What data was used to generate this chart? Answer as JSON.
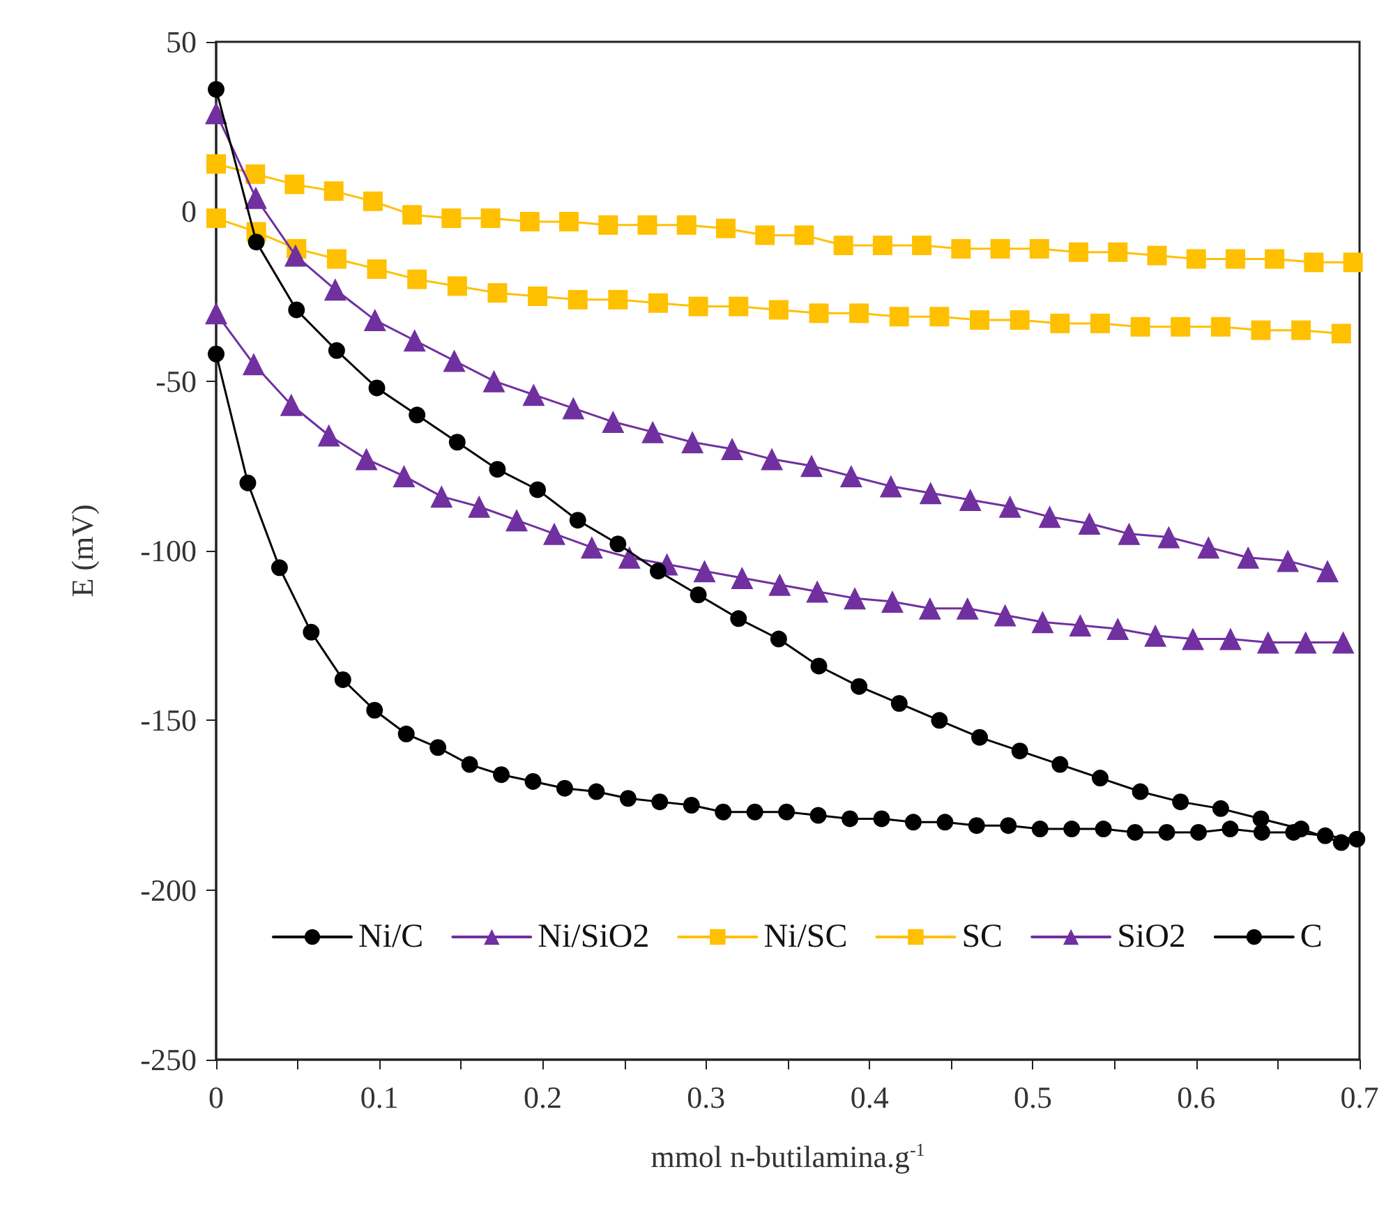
{
  "chart_data": {
    "type": "line",
    "xlabel": "mmol n-butilamina.g$^{-1}$",
    "ylabel": "E (mV)",
    "xlim": [
      0,
      0.7
    ],
    "xticks": [
      0,
      {
        "value": 0.05,
        "label": null
      },
      0.1,
      {
        "value": 0.15,
        "label": null
      },
      0.2,
      {
        "value": 0.25,
        "label": null
      },
      0.3,
      {
        "value": 0.35,
        "label": null
      },
      0.4,
      {
        "value": 0.45,
        "label": null
      },
      0.5,
      {
        "value": 0.55,
        "label": null
      },
      0.6,
      {
        "value": 0.65,
        "label": null
      },
      0.7
    ],
    "ylim": [
      -250,
      50
    ],
    "yticks": [
      -250,
      -200,
      -150,
      -100,
      -50,
      0,
      50
    ],
    "grid": false,
    "legend": "bottom",
    "line_style": "solid",
    "series": [
      {
        "name": "Ni/C",
        "color": "#000000",
        "marker": "circle",
        "x": [
          0,
          0.0246,
          0.0492,
          0.0738,
          0.0984,
          0.123,
          0.1476,
          0.1722,
          0.1968,
          0.2214,
          0.246,
          0.2706,
          0.2952,
          0.3198,
          0.3444,
          0.369,
          0.3936,
          0.4182,
          0.4428,
          0.4674,
          0.492,
          0.5166,
          0.5412,
          0.5658,
          0.5904,
          0.615,
          0.6396,
          0.6642,
          0.6888
        ],
        "values": [
          36,
          -9,
          -29,
          -41,
          -52,
          -60,
          -68,
          -76,
          -82,
          -91,
          -98,
          -106,
          -113,
          -120,
          -126,
          -134,
          -140,
          -145,
          -150,
          -155,
          -159,
          -163,
          -167,
          -171,
          -174,
          -176,
          -179,
          -182,
          -186
        ]
      },
      {
        "name": "Ni/SiO2",
        "color": "#7030a0",
        "marker": "triangle",
        "x": [
          0,
          0.0243,
          0.0486,
          0.0729,
          0.0972,
          0.1215,
          0.1458,
          0.1701,
          0.1944,
          0.2187,
          0.243,
          0.2673,
          0.2916,
          0.3159,
          0.3402,
          0.3645,
          0.3888,
          0.4131,
          0.4374,
          0.4617,
          0.486,
          0.5103,
          0.5346,
          0.5589,
          0.5832,
          0.6075,
          0.6318,
          0.6561,
          0.6804
        ],
        "values": [
          29,
          4,
          -13,
          -23,
          -32,
          -38,
          -44,
          -50,
          -54,
          -58,
          -62,
          -65,
          -68,
          -70,
          -73,
          -75,
          -78,
          -81,
          -83,
          -85,
          -87,
          -90,
          -92,
          -95,
          -96,
          -99,
          -102,
          -103,
          -106
        ]
      },
      {
        "name": "Ni/SC",
        "color": "#ffc000",
        "marker": "square",
        "x": [
          0,
          0.0246,
          0.0492,
          0.0738,
          0.0984,
          0.123,
          0.1476,
          0.1722,
          0.1968,
          0.2214,
          0.246,
          0.2706,
          0.2952,
          0.3198,
          0.3444,
          0.369,
          0.3936,
          0.4182,
          0.4428,
          0.4674,
          0.492,
          0.5166,
          0.5412,
          0.5658,
          0.5904,
          0.615,
          0.6396,
          0.6642,
          0.6888
        ],
        "values": [
          -2,
          -6,
          -11,
          -14,
          -17,
          -20,
          -22,
          -24,
          -25,
          -26,
          -26,
          -27,
          -28,
          -28,
          -29,
          -30,
          -30,
          -31,
          -31,
          -32,
          -32,
          -33,
          -33,
          -34,
          -34,
          -34,
          -35,
          -35,
          -36
        ]
      },
      {
        "name": "SC",
        "color": "#ffc000",
        "marker": "square",
        "x": [
          0,
          0.024,
          0.048,
          0.072,
          0.096,
          0.12,
          0.144,
          0.168,
          0.192,
          0.216,
          0.24,
          0.264,
          0.288,
          0.312,
          0.336,
          0.36,
          0.384,
          0.408,
          0.432,
          0.456,
          0.48,
          0.504,
          0.528,
          0.552,
          0.576,
          0.6,
          0.624,
          0.648,
          0.672,
          0.696
        ],
        "values": [
          14,
          11,
          8,
          6,
          3,
          -1,
          -2,
          -2,
          -3,
          -3,
          -4,
          -4,
          -4,
          -5,
          -7,
          -7,
          -10,
          -10,
          -10,
          -11,
          -11,
          -11,
          -12,
          -12,
          -13,
          -14,
          -14,
          -14,
          -15,
          -15
        ]
      },
      {
        "name": "SiO2",
        "color": "#7030a0",
        "marker": "triangle",
        "x": [
          0,
          0.023,
          0.046,
          0.069,
          0.092,
          0.115,
          0.138,
          0.161,
          0.184,
          0.207,
          0.23,
          0.253,
          0.276,
          0.299,
          0.322,
          0.345,
          0.368,
          0.391,
          0.414,
          0.437,
          0.46,
          0.483,
          0.506,
          0.529,
          0.552,
          0.575,
          0.598,
          0.621,
          0.644,
          0.667,
          0.69
        ],
        "values": [
          -30,
          -45,
          -57,
          -66,
          -73,
          -78,
          -84,
          -87,
          -91,
          -95,
          -99,
          -102,
          -104,
          -106,
          -108,
          -110,
          -112,
          -114,
          -115,
          -117,
          -117,
          -119,
          -121,
          -122,
          -123,
          -125,
          -126,
          -126,
          -127,
          -127,
          -127
        ]
      },
      {
        "name": "C",
        "color": "#000000",
        "marker": "circle",
        "x": [
          0,
          0.0194,
          0.0388,
          0.0582,
          0.0776,
          0.097,
          0.1164,
          0.1358,
          0.1552,
          0.1746,
          0.194,
          0.2134,
          0.2328,
          0.2522,
          0.2716,
          0.291,
          0.3104,
          0.3298,
          0.3492,
          0.3686,
          0.388,
          0.4074,
          0.4268,
          0.4462,
          0.4656,
          0.485,
          0.5044,
          0.5238,
          0.5432,
          0.5626,
          0.582,
          0.6014,
          0.6208,
          0.6402,
          0.6596,
          0.679,
          0.6984
        ],
        "values": [
          -42,
          -80,
          -105,
          -124,
          -138,
          -147,
          -154,
          -158,
          -163,
          -166,
          -168,
          -170,
          -171,
          -173,
          -174,
          -175,
          -177,
          -177,
          -177,
          -178,
          -179,
          -179,
          -180,
          -180,
          -181,
          -181,
          -182,
          -182,
          -182,
          -183,
          -183,
          -183,
          -182,
          -183,
          -183,
          -184,
          -185
        ]
      }
    ]
  }
}
